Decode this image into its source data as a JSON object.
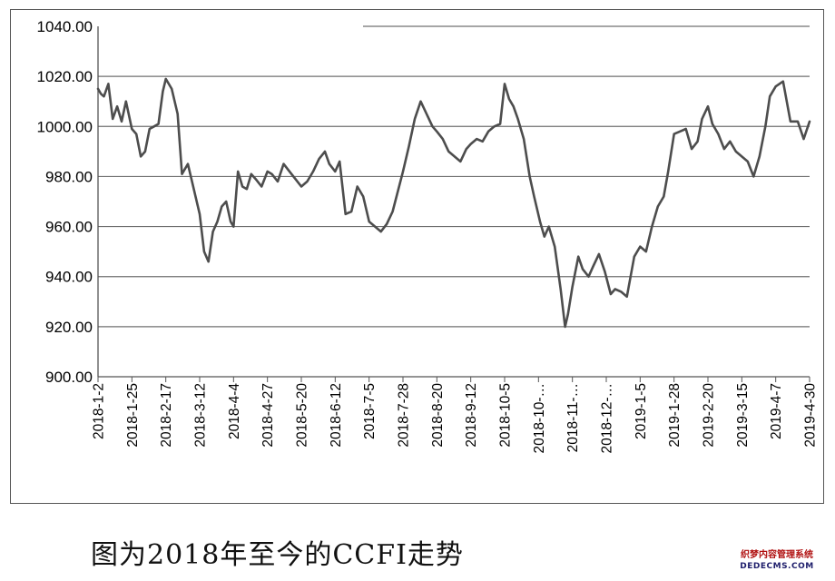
{
  "chart_data": {
    "type": "line",
    "title": "",
    "xlabel": "",
    "ylabel": "",
    "ylim": [
      900,
      1040
    ],
    "y_ticks": [
      "900.00",
      "920.00",
      "940.00",
      "960.00",
      "980.00",
      "1000.00",
      "1020.00",
      "1040.00"
    ],
    "x_tick_labels": [
      "2018-1-2",
      "2018-1-25",
      "2018-2-17",
      "2018-3-12",
      "2018-4-4",
      "2018-4-27",
      "2018-5-20",
      "2018-6-12",
      "2018-7-5",
      "2018-7-28",
      "2018-8-20",
      "2018-9-12",
      "2018-10-5",
      "2018-10-…",
      "2018-11-…",
      "2018-12-…",
      "2019-1-5",
      "2019-1-28",
      "2019-2-20",
      "2019-3-15",
      "2019-4-7",
      "2019-4-30"
    ],
    "grid": "horizontal",
    "line_color": "#4d4d4d",
    "series": [
      {
        "x": [
          "2018-01-02",
          "2018-01-04",
          "2018-01-06",
          "2018-01-09",
          "2018-01-12",
          "2018-01-15",
          "2018-01-18",
          "2018-01-21",
          "2018-01-25",
          "2018-01-28",
          "2018-01-31",
          "2018-02-03",
          "2018-02-06",
          "2018-02-09",
          "2018-02-12",
          "2018-02-15",
          "2018-02-17",
          "2018-02-21",
          "2018-02-25",
          "2018-02-28",
          "2018-03-04",
          "2018-03-08",
          "2018-03-12",
          "2018-03-15",
          "2018-03-18",
          "2018-03-21",
          "2018-03-24",
          "2018-03-27",
          "2018-03-30",
          "2018-04-02",
          "2018-04-04",
          "2018-04-07",
          "2018-04-10",
          "2018-04-13",
          "2018-04-16",
          "2018-04-19",
          "2018-04-23",
          "2018-04-27",
          "2018-04-30",
          "2018-05-04",
          "2018-05-08",
          "2018-05-12",
          "2018-05-16",
          "2018-05-20",
          "2018-05-24",
          "2018-05-28",
          "2018-06-01",
          "2018-06-05",
          "2018-06-08",
          "2018-06-12",
          "2018-06-15",
          "2018-06-19",
          "2018-06-23",
          "2018-06-27",
          "2018-07-01",
          "2018-07-05",
          "2018-07-09",
          "2018-07-13",
          "2018-07-17",
          "2018-07-21",
          "2018-07-28",
          "2018-08-01",
          "2018-08-05",
          "2018-08-09",
          "2018-08-13",
          "2018-08-17",
          "2018-08-20",
          "2018-08-24",
          "2018-08-28",
          "2018-09-01",
          "2018-09-05",
          "2018-09-09",
          "2018-09-12",
          "2018-09-16",
          "2018-09-20",
          "2018-09-24",
          "2018-09-28",
          "2018-10-02",
          "2018-10-05",
          "2018-10-08",
          "2018-10-11",
          "2018-10-14",
          "2018-10-18",
          "2018-10-22",
          "2018-10-25",
          "2018-10-29",
          "2018-11-01",
          "2018-11-04",
          "2018-11-08",
          "2018-11-12",
          "2018-11-15",
          "2018-11-17",
          "2018-11-20",
          "2018-11-24",
          "2018-11-27",
          "2018-12-01",
          "2018-12-04",
          "2018-12-08",
          "2018-12-12",
          "2018-12-16",
          "2018-12-19",
          "2018-12-23",
          "2018-12-27",
          "2019-01-01",
          "2019-01-05",
          "2019-01-09",
          "2019-01-13",
          "2019-01-17",
          "2019-01-21",
          "2019-01-24",
          "2019-01-28",
          "2019-02-01",
          "2019-02-05",
          "2019-02-09",
          "2019-02-13",
          "2019-02-16",
          "2019-02-20",
          "2019-02-23",
          "2019-02-27",
          "2019-03-03",
          "2019-03-07",
          "2019-03-11",
          "2019-03-15",
          "2019-03-19",
          "2019-03-23",
          "2019-03-27",
          "2019-03-31",
          "2019-04-03",
          "2019-04-07",
          "2019-04-12",
          "2019-04-17",
          "2019-04-22",
          "2019-04-26",
          "2019-04-30"
        ],
        "values": [
          1015,
          1013,
          1012,
          1017,
          1003,
          1008,
          1002,
          1010,
          999,
          997,
          988,
          990,
          999,
          1000,
          1001,
          1014,
          1019,
          1015,
          1005,
          981,
          985,
          975,
          965,
          950,
          946,
          958,
          962,
          968,
          970,
          962,
          960,
          982,
          976,
          975,
          981,
          979,
          976,
          982,
          981,
          978,
          985,
          982,
          979,
          976,
          978,
          982,
          987,
          990,
          985,
          982,
          986,
          965,
          966,
          976,
          972,
          962,
          960,
          958,
          961,
          966,
          982,
          992,
          1003,
          1010,
          1005,
          1000,
          998,
          995,
          990,
          988,
          986,
          991,
          993,
          995,
          994,
          998,
          1000,
          1001,
          1017,
          1011,
          1008,
          1003,
          995,
          980,
          972,
          962,
          956,
          960,
          952,
          935,
          920,
          925,
          936,
          948,
          943,
          940,
          944,
          949,
          942,
          933,
          935,
          934,
          932,
          948,
          952,
          950,
          960,
          968,
          972,
          982,
          997,
          998,
          999,
          991,
          994,
          1003,
          1008,
          1001,
          997,
          991,
          994,
          990,
          988,
          986,
          980,
          988,
          1000,
          1012,
          1016,
          1018,
          1002,
          1002,
          995,
          1002
        ]
      }
    ]
  },
  "caption": "图为2018年至今的CCFI走势",
  "watermark": {
    "cn": "织梦内容管理系统",
    "en": "DEDECMS.COM"
  }
}
